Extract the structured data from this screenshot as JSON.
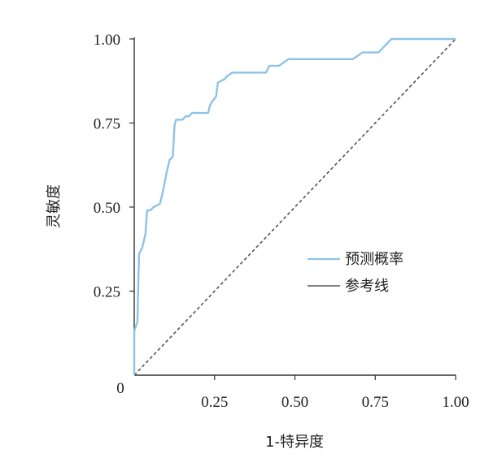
{
  "chart_data": {
    "type": "line",
    "title": "",
    "xlabel": "1-特异度",
    "ylabel": "灵敏度",
    "xlim": [
      0,
      1
    ],
    "ylim": [
      0,
      1
    ],
    "x_ticks": [
      {
        "value": 0.25,
        "label": "0.25"
      },
      {
        "value": 0.5,
        "label": "0.50"
      },
      {
        "value": 0.75,
        "label": "0.75"
      },
      {
        "value": 1.0,
        "label": "1.00"
      }
    ],
    "y_ticks": [
      {
        "value": 0.25,
        "label": "0.25"
      },
      {
        "value": 0.5,
        "label": "0.50"
      },
      {
        "value": 0.75,
        "label": "0.75"
      },
      {
        "value": 1.0,
        "label": "1.00"
      }
    ],
    "origin_label": "0",
    "grid": false,
    "legend_position": "center-right",
    "series": [
      {
        "name": "预测概率",
        "color": "#8ec3e6",
        "style": "solid",
        "points": [
          [
            0.0,
            0.0
          ],
          [
            0.0,
            0.13
          ],
          [
            0.01,
            0.16
          ],
          [
            0.015,
            0.36
          ],
          [
            0.025,
            0.38
          ],
          [
            0.035,
            0.42
          ],
          [
            0.04,
            0.49
          ],
          [
            0.05,
            0.49
          ],
          [
            0.06,
            0.5
          ],
          [
            0.08,
            0.51
          ],
          [
            0.09,
            0.55
          ],
          [
            0.1,
            0.6
          ],
          [
            0.11,
            0.64
          ],
          [
            0.12,
            0.65
          ],
          [
            0.125,
            0.74
          ],
          [
            0.13,
            0.76
          ],
          [
            0.15,
            0.76
          ],
          [
            0.16,
            0.77
          ],
          [
            0.17,
            0.77
          ],
          [
            0.18,
            0.78
          ],
          [
            0.23,
            0.78
          ],
          [
            0.235,
            0.8
          ],
          [
            0.24,
            0.81
          ],
          [
            0.255,
            0.83
          ],
          [
            0.26,
            0.87
          ],
          [
            0.28,
            0.88
          ],
          [
            0.29,
            0.89
          ],
          [
            0.305,
            0.9
          ],
          [
            0.41,
            0.9
          ],
          [
            0.42,
            0.92
          ],
          [
            0.45,
            0.92
          ],
          [
            0.48,
            0.94
          ],
          [
            0.68,
            0.94
          ],
          [
            0.71,
            0.96
          ],
          [
            0.76,
            0.96
          ],
          [
            0.78,
            0.98
          ],
          [
            0.8,
            1.0
          ],
          [
            1.0,
            1.0
          ]
        ]
      },
      {
        "name": "参考线",
        "color": "#555555",
        "style": "dashed",
        "points": [
          [
            0.0,
            0.0
          ],
          [
            1.0,
            1.0
          ]
        ]
      }
    ]
  }
}
